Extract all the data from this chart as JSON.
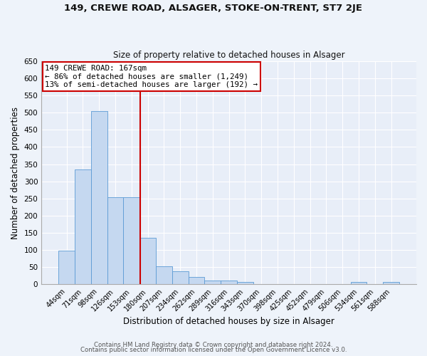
{
  "title1": "149, CREWE ROAD, ALSAGER, STOKE-ON-TRENT, ST7 2JE",
  "title2": "Size of property relative to detached houses in Alsager",
  "xlabel": "Distribution of detached houses by size in Alsager",
  "ylabel": "Number of detached properties",
  "categories": [
    "44sqm",
    "71sqm",
    "98sqm",
    "126sqm",
    "153sqm",
    "180sqm",
    "207sqm",
    "234sqm",
    "262sqm",
    "289sqm",
    "316sqm",
    "343sqm",
    "370sqm",
    "398sqm",
    "425sqm",
    "452sqm",
    "479sqm",
    "506sqm",
    "534sqm",
    "561sqm",
    "588sqm"
  ],
  "values": [
    98,
    335,
    505,
    253,
    253,
    135,
    52,
    37,
    22,
    10,
    11,
    6,
    0,
    1,
    0,
    0,
    0,
    0,
    7,
    0,
    6
  ],
  "bar_color": "#c5d8f0",
  "bar_edge_color": "#5b9bd5",
  "red_line_color": "#cc0000",
  "annotation_title": "149 CREWE ROAD: 167sqm",
  "annotation_line1": "← 86% of detached houses are smaller (1,249)",
  "annotation_line2": "13% of semi-detached houses are larger (192) →",
  "annotation_box_facecolor": "#ffffff",
  "annotation_box_edgecolor": "#cc0000",
  "footer1": "Contains HM Land Registry data © Crown copyright and database right 2024.",
  "footer2": "Contains public sector information licensed under the Open Government Licence v3.0.",
  "fig_facecolor": "#eef3fa",
  "axes_facecolor": "#e8eef8",
  "ylim": [
    0,
    650
  ],
  "yticks": [
    0,
    50,
    100,
    150,
    200,
    250,
    300,
    350,
    400,
    450,
    500,
    550,
    600,
    650
  ]
}
